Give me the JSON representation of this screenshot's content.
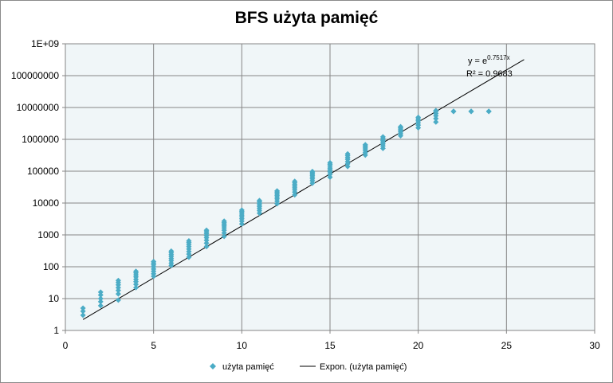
{
  "chart_data": {
    "type": "scatter",
    "title": "BFS użyta pamięć",
    "xlabel": "",
    "ylabel": "",
    "xlim": [
      0,
      30
    ],
    "ylim": [
      1,
      1000000000
    ],
    "y_scale": "log",
    "x_ticks": [
      "0",
      "5",
      "10",
      "15",
      "20",
      "25",
      "30"
    ],
    "y_ticks": [
      "1",
      "10",
      "100",
      "1000",
      "10000",
      "100000",
      "1000000",
      "10000000",
      "100000000",
      "1E+09"
    ],
    "grid": true,
    "legend_position": "bottom",
    "series": [
      {
        "name": "użyta pamięć",
        "marker": "diamond",
        "color": "#4bacc6",
        "points": [
          [
            1,
            3
          ],
          [
            1,
            4
          ],
          [
            1,
            5
          ],
          [
            2,
            6
          ],
          [
            2,
            8
          ],
          [
            2,
            10
          ],
          [
            2,
            13
          ],
          [
            2,
            16
          ],
          [
            3,
            9
          ],
          [
            3,
            14
          ],
          [
            3,
            18
          ],
          [
            3,
            22
          ],
          [
            3,
            27
          ],
          [
            3,
            32
          ],
          [
            3,
            37
          ],
          [
            4,
            22
          ],
          [
            4,
            28
          ],
          [
            4,
            34
          ],
          [
            4,
            40
          ],
          [
            4,
            48
          ],
          [
            4,
            56
          ],
          [
            4,
            64
          ],
          [
            4,
            72
          ],
          [
            5,
            50
          ],
          [
            5,
            60
          ],
          [
            5,
            72
          ],
          [
            5,
            85
          ],
          [
            5,
            100
          ],
          [
            5,
            115
          ],
          [
            5,
            130
          ],
          [
            5,
            145
          ],
          [
            6,
            110
          ],
          [
            6,
            130
          ],
          [
            6,
            155
          ],
          [
            6,
            180
          ],
          [
            6,
            210
          ],
          [
            6,
            240
          ],
          [
            6,
            275
          ],
          [
            6,
            310
          ],
          [
            7,
            200
          ],
          [
            7,
            250
          ],
          [
            7,
            300
          ],
          [
            7,
            360
          ],
          [
            7,
            430
          ],
          [
            7,
            500
          ],
          [
            7,
            580
          ],
          [
            7,
            650
          ],
          [
            8,
            430
          ],
          [
            8,
            550
          ],
          [
            8,
            680
          ],
          [
            8,
            820
          ],
          [
            8,
            960
          ],
          [
            8,
            1100
          ],
          [
            8,
            1250
          ],
          [
            8,
            1400
          ],
          [
            9,
            900
          ],
          [
            9,
            1150
          ],
          [
            9,
            1400
          ],
          [
            9,
            1650
          ],
          [
            9,
            1900
          ],
          [
            9,
            2150
          ],
          [
            9,
            2400
          ],
          [
            9,
            2700
          ],
          [
            10,
            2200
          ],
          [
            10,
            2700
          ],
          [
            10,
            3200
          ],
          [
            10,
            3700
          ],
          [
            10,
            4200
          ],
          [
            10,
            4800
          ],
          [
            10,
            5400
          ],
          [
            10,
            6000
          ],
          [
            11,
            4800
          ],
          [
            11,
            5800
          ],
          [
            11,
            6800
          ],
          [
            11,
            7800
          ],
          [
            11,
            8800
          ],
          [
            11,
            9800
          ],
          [
            11,
            11000
          ],
          [
            11,
            12000
          ],
          [
            12,
            9500
          ],
          [
            12,
            11500
          ],
          [
            12,
            13500
          ],
          [
            12,
            15500
          ],
          [
            12,
            17500
          ],
          [
            12,
            19500
          ],
          [
            12,
            22000
          ],
          [
            12,
            24000
          ],
          [
            13,
            18000
          ],
          [
            13,
            22000
          ],
          [
            13,
            26000
          ],
          [
            13,
            30000
          ],
          [
            13,
            34000
          ],
          [
            13,
            38000
          ],
          [
            13,
            43000
          ],
          [
            13,
            48000
          ],
          [
            14,
            42000
          ],
          [
            14,
            50000
          ],
          [
            14,
            58000
          ],
          [
            14,
            66000
          ],
          [
            14,
            74000
          ],
          [
            14,
            82000
          ],
          [
            14,
            90000
          ],
          [
            14,
            98000
          ],
          [
            15,
            65000
          ],
          [
            15,
            80000
          ],
          [
            15,
            95000
          ],
          [
            15,
            110000
          ],
          [
            15,
            125000
          ],
          [
            15,
            145000
          ],
          [
            15,
            165000
          ],
          [
            15,
            185000
          ],
          [
            16,
            140000
          ],
          [
            16,
            170000
          ],
          [
            16,
            200000
          ],
          [
            16,
            235000
          ],
          [
            16,
            270000
          ],
          [
            16,
            310000
          ],
          [
            16,
            350000
          ],
          [
            17,
            320000
          ],
          [
            17,
            380000
          ],
          [
            17,
            440000
          ],
          [
            17,
            500000
          ],
          [
            17,
            560000
          ],
          [
            17,
            620000
          ],
          [
            17,
            680000
          ],
          [
            18,
            520000
          ],
          [
            18,
            620000
          ],
          [
            18,
            720000
          ],
          [
            18,
            820000
          ],
          [
            18,
            920000
          ],
          [
            18,
            1050000
          ],
          [
            18,
            1200000
          ],
          [
            19,
            1300000
          ],
          [
            19,
            1500000
          ],
          [
            19,
            1700000
          ],
          [
            19,
            1900000
          ],
          [
            19,
            2100000
          ],
          [
            19,
            2300000
          ],
          [
            19,
            2500000
          ],
          [
            20,
            2300000
          ],
          [
            20,
            2800000
          ],
          [
            20,
            3300000
          ],
          [
            20,
            3800000
          ],
          [
            20,
            4300000
          ],
          [
            20,
            4900000
          ],
          [
            21,
            3500000
          ],
          [
            21,
            4500000
          ],
          [
            21,
            5500000
          ],
          [
            21,
            6500000
          ],
          [
            21,
            7500000
          ],
          [
            21,
            8000000
          ],
          [
            22,
            7500000
          ],
          [
            22,
            7600000
          ],
          [
            23,
            7500000
          ],
          [
            23,
            7600000
          ],
          [
            24,
            7500000
          ],
          [
            24,
            7600000
          ]
        ]
      },
      {
        "name": "Expon. (użyta pamięć)",
        "type": "trendline",
        "color": "#000000",
        "x_range": [
          1,
          26
        ],
        "exponent": 0.7517,
        "r_squared": 0.9683
      }
    ],
    "annotations": {
      "equation_prefix": "y = e",
      "equation_exponent": "0.7517x",
      "r_squared_text": "R² = 0.9683"
    }
  }
}
